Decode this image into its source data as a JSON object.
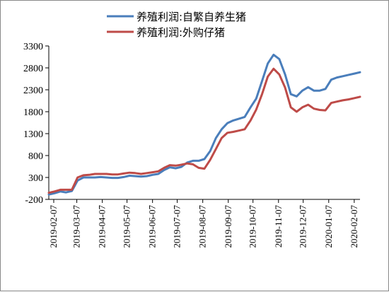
{
  "chart_data": {
    "type": "line",
    "title": "",
    "xlabel": "",
    "ylabel": "",
    "ylim": [
      -200,
      3300
    ],
    "yticks": [
      -200,
      300,
      800,
      1300,
      1800,
      2300,
      2800,
      3300
    ],
    "x_tick_labels": [
      "2019-02-07",
      "2019-03-07",
      "2019-04-07",
      "2019-05-07",
      "2019-06-07",
      "2019-07-07",
      "2019-08-07",
      "2019-09-07",
      "2019-10-07",
      "2019-11-07",
      "2019-12-07",
      "2020-01-07",
      "2020-02-07"
    ],
    "legend_position": "top-left",
    "grid": false,
    "x": [
      "2019-02-01",
      "2019-02-08",
      "2019-02-15",
      "2019-02-22",
      "2019-03-01",
      "2019-03-08",
      "2019-03-15",
      "2019-03-22",
      "2019-03-29",
      "2019-04-05",
      "2019-04-12",
      "2019-04-19",
      "2019-04-26",
      "2019-05-03",
      "2019-05-10",
      "2019-05-17",
      "2019-05-24",
      "2019-05-31",
      "2019-06-07",
      "2019-06-14",
      "2019-06-21",
      "2019-06-28",
      "2019-07-05",
      "2019-07-12",
      "2019-07-19",
      "2019-07-26",
      "2019-08-02",
      "2019-08-09",
      "2019-08-16",
      "2019-08-23",
      "2019-08-30",
      "2019-09-06",
      "2019-09-13",
      "2019-09-20",
      "2019-09-27",
      "2019-10-04",
      "2019-10-11",
      "2019-10-18",
      "2019-10-25",
      "2019-11-01",
      "2019-11-08",
      "2019-11-15",
      "2019-11-22",
      "2019-11-29",
      "2019-12-06",
      "2019-12-13",
      "2019-12-20",
      "2019-12-27",
      "2020-01-03",
      "2020-01-10",
      "2020-01-17",
      "2020-01-24",
      "2020-01-31",
      "2020-02-07",
      "2020-02-14"
    ],
    "series": [
      {
        "name": "养殖利润:自繁自养生猪",
        "color": "#4a7ebb",
        "values": [
          -90,
          -60,
          -20,
          -40,
          -10,
          230,
          300,
          300,
          300,
          310,
          300,
          290,
          290,
          310,
          340,
          330,
          320,
          330,
          360,
          380,
          470,
          530,
          510,
          540,
          640,
          680,
          680,
          720,
          900,
          1200,
          1400,
          1540,
          1600,
          1640,
          1680,
          1900,
          2100,
          2500,
          2900,
          3100,
          3000,
          2650,
          2200,
          2150,
          2280,
          2360,
          2280,
          2280,
          2320,
          2530,
          2580,
          2610,
          2640,
          2670,
          2700
        ]
      },
      {
        "name": "养殖利润:外购仔猪",
        "color": "#be4b48",
        "values": [
          -50,
          -20,
          20,
          20,
          20,
          300,
          350,
          360,
          380,
          380,
          380,
          370,
          370,
          390,
          410,
          400,
          380,
          400,
          420,
          440,
          520,
          580,
          570,
          590,
          620,
          600,
          520,
          500,
          700,
          950,
          1200,
          1320,
          1340,
          1370,
          1400,
          1600,
          1850,
          2200,
          2600,
          2780,
          2650,
          2350,
          1900,
          1800,
          1900,
          1960,
          1870,
          1840,
          1830,
          2000,
          2030,
          2060,
          2080,
          2110,
          2140
        ]
      }
    ]
  }
}
